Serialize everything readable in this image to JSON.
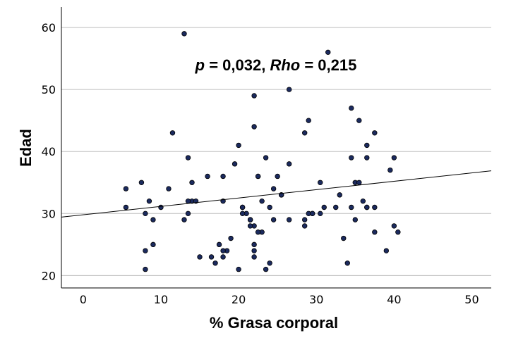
{
  "chart_data": {
    "type": "scatter",
    "xlabel": "% Grasa corporal",
    "ylabel": "Edad",
    "xlim": [
      -2.8,
      52.5
    ],
    "ylim": [
      18,
      63.3
    ],
    "xticks": [
      0,
      10,
      20,
      30,
      40,
      50
    ],
    "yticks": [
      20,
      30,
      40,
      50,
      60
    ],
    "grid": "horizontal",
    "annotation": {
      "p_symbol": "p",
      "p_text": " = 0,032, ",
      "rho_symbol": "Rho",
      "rho_text": " = 0,215"
    },
    "fit_line": {
      "intercept": 29.8,
      "slope": 0.135
    },
    "colors": {
      "marker": "#1b2a5e",
      "marker_edge": "#000000",
      "grid": "#bdbdbd",
      "axis": "#000000"
    },
    "x": [
      13,
      31.5,
      26.5,
      22,
      29,
      34.5,
      35.5,
      22,
      11.5,
      28.5,
      37.5,
      20,
      36.5,
      13.5,
      34.5,
      36.5,
      40,
      39.5,
      22.5,
      26.5,
      14,
      23.5,
      5.5,
      7.5,
      11,
      16,
      19.5,
      22.5,
      25,
      18,
      35,
      35.5,
      30.5,
      24.5,
      25.5,
      25.5,
      33,
      8.5,
      14,
      14.5,
      13.5,
      20.5,
      18,
      36,
      23,
      34.5,
      5.5,
      10,
      8,
      20.5,
      24,
      21,
      29,
      30.5,
      32.5,
      31,
      36.5,
      37.5,
      21.5,
      13,
      9,
      35,
      24.5,
      26.5,
      28.5,
      22,
      21.5,
      40,
      23,
      13.5,
      28.5,
      20.5,
      36.5,
      40.5,
      22.5,
      33.5,
      37.5,
      19,
      17.5,
      8,
      9,
      22,
      18.5,
      18,
      39,
      18,
      22,
      22,
      15,
      16.5,
      24,
      34,
      17,
      8,
      20,
      23.5,
      29.5,
      21.5,
      21.5,
      29.5
    ],
    "y": [
      59,
      56,
      50,
      49,
      45,
      47,
      45,
      44,
      43,
      43,
      43,
      41,
      41,
      39,
      39,
      39,
      39,
      37,
      36,
      38,
      35,
      39,
      34,
      35,
      34,
      36,
      38,
      36,
      36,
      36,
      35,
      35,
      35,
      34,
      33,
      33,
      33,
      32,
      32,
      32,
      32,
      31,
      32,
      32,
      32,
      31,
      31,
      31,
      30,
      31,
      31,
      30,
      30,
      30,
      31,
      31,
      31,
      31,
      29,
      29,
      29,
      29,
      29,
      29,
      28,
      28,
      28,
      28,
      27,
      30,
      29,
      30,
      31,
      27,
      27,
      26,
      27,
      26,
      25,
      24,
      25,
      25,
      24,
      24,
      24,
      23,
      24,
      23,
      23,
      23,
      22,
      22,
      22,
      21,
      21,
      21,
      30,
      29,
      29,
      30
    ]
  }
}
